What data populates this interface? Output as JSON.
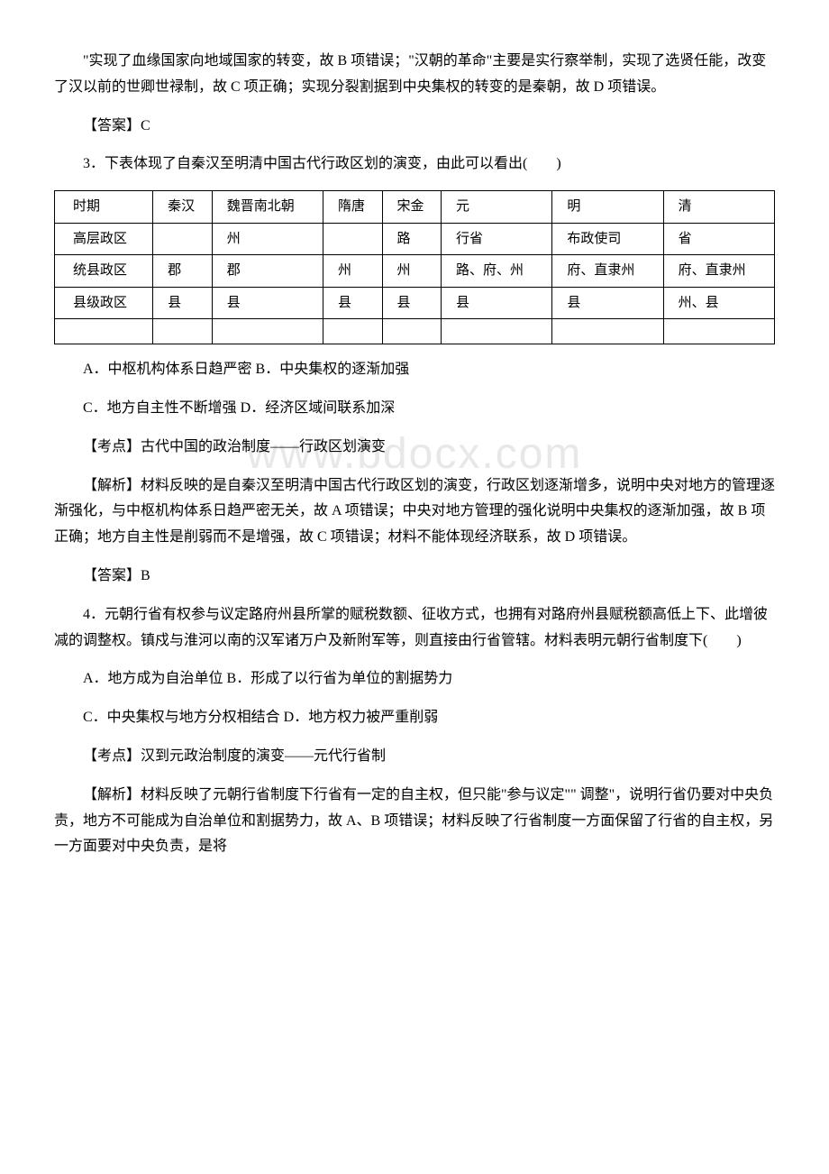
{
  "watermark": "www.bdocx.com",
  "p1": "\"实现了血缘国家向地域国家的转变，故 B 项错误；\"汉朝的革命\"主要是实行察举制，实现了选贤任能，改变了汉以前的世卿世禄制，故 C 项正确；实现分裂割据到中央集权的转变的是秦朝，故 D 项错误。",
  "p2": "【答案】C",
  "p3": "3．下表体现了自秦汉至明清中国古代行政区划的演变，由此可以看出(　　)",
  "table": {
    "header_label": "时期",
    "periods": [
      "秦汉",
      "魏晋南北朝",
      "隋唐",
      "宋金",
      "元",
      "明",
      "清"
    ],
    "rows": [
      {
        "label": "高层政区",
        "cells": [
          "",
          "州",
          "",
          "路",
          "行省",
          "布政使司",
          "省"
        ]
      },
      {
        "label": "统县政区",
        "cells": [
          "郡",
          "郡",
          "州",
          "州",
          "路、府、州",
          "府、直隶州",
          "府、直隶州"
        ]
      },
      {
        "label": "县级政区",
        "cells": [
          "县",
          "县",
          "县",
          "县",
          "县",
          "县",
          "州、县"
        ]
      }
    ]
  },
  "p4": "A．中枢机构体系日趋严密  B．中央集权的逐渐加强",
  "p5": "C．地方自主性不断增强  D．经济区域间联系加深",
  "p6": "【考点】古代中国的政治制度——行政区划演变",
  "p7": "【解析】材料反映的是自秦汉至明清中国古代行政区划的演变，行政区划逐渐增多，说明中央对地方的管理逐渐强化，与中枢机构体系日趋严密无关，故 A 项错误；中央对地方管理的强化说明中央集权的逐渐加强，故 B 项正确；地方自主性是削弱而不是增强，故 C 项错误；材料不能体现经济联系，故 D 项错误。",
  "p8": "【答案】B",
  "p9": "4．元朝行省有权参与议定路府州县所掌的赋税数额、征收方式，也拥有对路府州县赋税额高低上下、此增彼减的调整权。镇戍与淮河以南的汉军诸万户及新附军等，则直接由行省管辖。材料表明元朝行省制度下(　　)",
  "p10": "A．地方成为自治单位  B．形成了以行省为单位的割据势力",
  "p11": "C．中央集权与地方分权相结合  D．地方权力被严重削弱",
  "p12": "【考点】汉到元政治制度的演变——元代行省制",
  "p13": "【解析】材料反映了元朝行省制度下行省有一定的自主权，但只能\"参与议定\"\" 调整\"，说明行省仍要对中央负责，地方不可能成为自治单位和割据势力，故 A、B 项错误；材料反映了行省制度一方面保留了行省的自主权，另一方面要对中央负责，是将"
}
